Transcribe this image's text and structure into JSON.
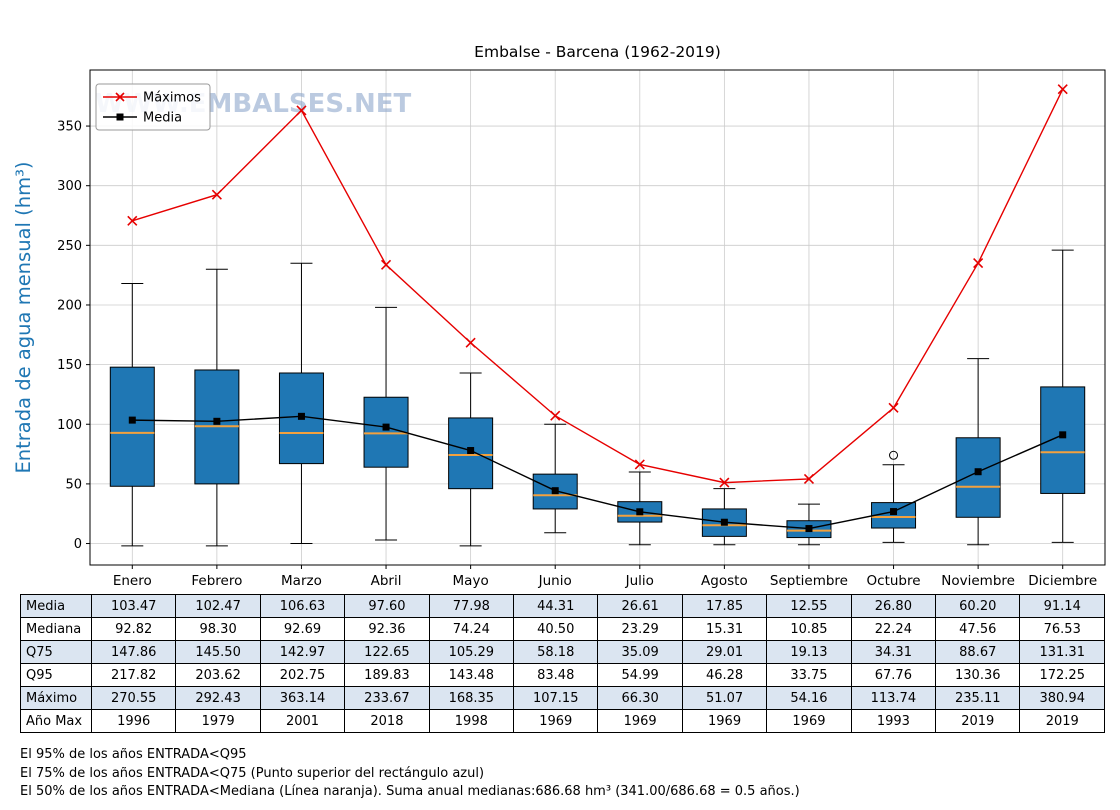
{
  "title": "Embalse - Barcena (1962-2019)",
  "watermark": "WWW.EMBALSES.NET",
  "ylabel": "Entrada de agua mensual (hm³)",
  "legend": {
    "maximos": "Máximos",
    "media": "Media"
  },
  "colors": {
    "box_fill": "#1f77b4",
    "median_line": "#f2a13e",
    "max_line": "#e60000",
    "mean_line": "#000000",
    "ylabel": "#1f77b4",
    "watermark": "#8fa8cd",
    "grid": "#cccccc",
    "table_band": "#dbe5f1"
  },
  "chart_data": {
    "type": "boxplot",
    "title": "Embalse - Barcena (1962-2019)",
    "xlabel": "",
    "ylabel": "Entrada de agua mensual (hm³)",
    "grid": true,
    "legend_position": "upper-left",
    "categories": [
      "Enero",
      "Febrero",
      "Marzo",
      "Abril",
      "Mayo",
      "Junio",
      "Julio",
      "Agosto",
      "Septiembre",
      "Octubre",
      "Noviembre",
      "Diciembre"
    ],
    "yticks": [
      0,
      50,
      100,
      150,
      200,
      250,
      300,
      350
    ],
    "ylim": [
      -18,
      397
    ],
    "series": {
      "media": [
        103.47,
        102.47,
        106.63,
        97.6,
        77.98,
        44.31,
        26.61,
        17.85,
        12.55,
        26.8,
        60.2,
        91.14
      ],
      "mediana": [
        92.82,
        98.3,
        92.69,
        92.36,
        74.24,
        40.5,
        23.29,
        15.31,
        10.85,
        22.24,
        47.56,
        76.53
      ],
      "q25": [
        48,
        50,
        67,
        64,
        46,
        29,
        18,
        6,
        5,
        13,
        22,
        42
      ],
      "q75": [
        147.86,
        145.5,
        142.97,
        122.65,
        105.29,
        58.18,
        35.09,
        29.01,
        19.13,
        34.31,
        88.67,
        131.31
      ],
      "q95": [
        217.82,
        203.62,
        202.75,
        189.83,
        143.48,
        83.48,
        54.99,
        46.28,
        33.75,
        67.76,
        130.36,
        172.25
      ],
      "maximo": [
        270.55,
        292.43,
        363.14,
        233.67,
        168.35,
        107.15,
        66.3,
        51.07,
        54.16,
        113.74,
        235.11,
        380.94
      ],
      "whisker_low": [
        -2,
        -2,
        0,
        3,
        -2,
        9,
        -1,
        -1,
        -1,
        1,
        -1,
        1
      ],
      "whisker_high": [
        218,
        230,
        235,
        198,
        143,
        100,
        60,
        46,
        33,
        66,
        155,
        246
      ],
      "outliers": [
        {
          "category": "Octubre",
          "index": 9,
          "value": 74
        }
      ]
    }
  },
  "table": {
    "rows": [
      {
        "label": "Media",
        "values": [
          "103.47",
          "102.47",
          "106.63",
          "97.60",
          "77.98",
          "44.31",
          "26.61",
          "17.85",
          "12.55",
          "26.80",
          "60.20",
          "91.14"
        ]
      },
      {
        "label": "Mediana",
        "values": [
          "92.82",
          "98.30",
          "92.69",
          "92.36",
          "74.24",
          "40.50",
          "23.29",
          "15.31",
          "10.85",
          "22.24",
          "47.56",
          "76.53"
        ]
      },
      {
        "label": "Q75",
        "values": [
          "147.86",
          "145.50",
          "142.97",
          "122.65",
          "105.29",
          "58.18",
          "35.09",
          "29.01",
          "19.13",
          "34.31",
          "88.67",
          "131.31"
        ]
      },
      {
        "label": "Q95",
        "values": [
          "217.82",
          "203.62",
          "202.75",
          "189.83",
          "143.48",
          "83.48",
          "54.99",
          "46.28",
          "33.75",
          "67.76",
          "130.36",
          "172.25"
        ]
      },
      {
        "label": "Máximo",
        "values": [
          "270.55",
          "292.43",
          "363.14",
          "233.67",
          "168.35",
          "107.15",
          "66.30",
          "51.07",
          "54.16",
          "113.74",
          "235.11",
          "380.94"
        ]
      },
      {
        "label": "Año Max",
        "values": [
          "1996",
          "1979",
          "2001",
          "2018",
          "1998",
          "1969",
          "1969",
          "1969",
          "1969",
          "1993",
          "2019",
          "2019"
        ]
      }
    ]
  },
  "footnotes": [
    "El 95% de los años ENTRADA<Q95",
    "El 75% de los años ENTRADA<Q75 (Punto superior del rectángulo azul)",
    "El 50% de los años ENTRADA<Mediana (Línea naranja). Suma anual medianas:686.68 hm³ (341.00/686.68 = 0.5 años.)"
  ]
}
